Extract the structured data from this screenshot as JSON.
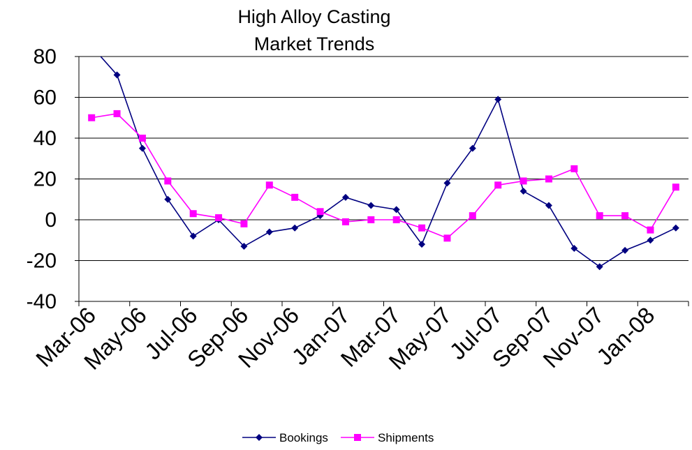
{
  "chart_data": {
    "type": "line",
    "title": [
      "High Alloy Casting",
      "Market Trends"
    ],
    "xlabel": "",
    "ylabel": "",
    "ylim": [
      -40,
      80
    ],
    "yticks": [
      80,
      60,
      40,
      20,
      0,
      -20,
      -40
    ],
    "categories": [
      "Mar-06",
      "Apr-06",
      "May-06",
      "Jun-06",
      "Jul-06",
      "Aug-06",
      "Sep-06",
      "Oct-06",
      "Nov-06",
      "Dec-06",
      "Jan-07",
      "Feb-07",
      "Mar-07",
      "Apr-07",
      "May-07",
      "Jun-07",
      "Jul-07",
      "Aug-07",
      "Sep-07",
      "Oct-07",
      "Nov-07",
      "Dec-07",
      "Jan-08",
      "Feb-08"
    ],
    "xtick_labels": [
      "Mar-06",
      "May-06",
      "Jul-06",
      "Sep-06",
      "Nov-06",
      "Jan-07",
      "Mar-07",
      "May-07",
      "Jul-07",
      "Sep-07",
      "Nov-07",
      "Jan-08"
    ],
    "grid": true,
    "legend_position": "bottom",
    "series": [
      {
        "name": "Bookings",
        "color": "#000080",
        "marker": "diamond",
        "values": [
          85,
          71,
          35,
          10,
          -8,
          0,
          -13,
          -6,
          -4,
          2,
          11,
          7,
          5,
          -12,
          18,
          35,
          59,
          14,
          7,
          -14,
          -23,
          -15,
          -10,
          -4
        ]
      },
      {
        "name": "Shipments",
        "color": "#FF00FF",
        "marker": "square",
        "values": [
          50,
          52,
          40,
          19,
          3,
          1,
          -2,
          17,
          11,
          4,
          -1,
          0,
          0,
          -4,
          -9,
          2,
          17,
          19,
          20,
          25,
          2,
          2,
          -5,
          16
        ]
      }
    ]
  }
}
